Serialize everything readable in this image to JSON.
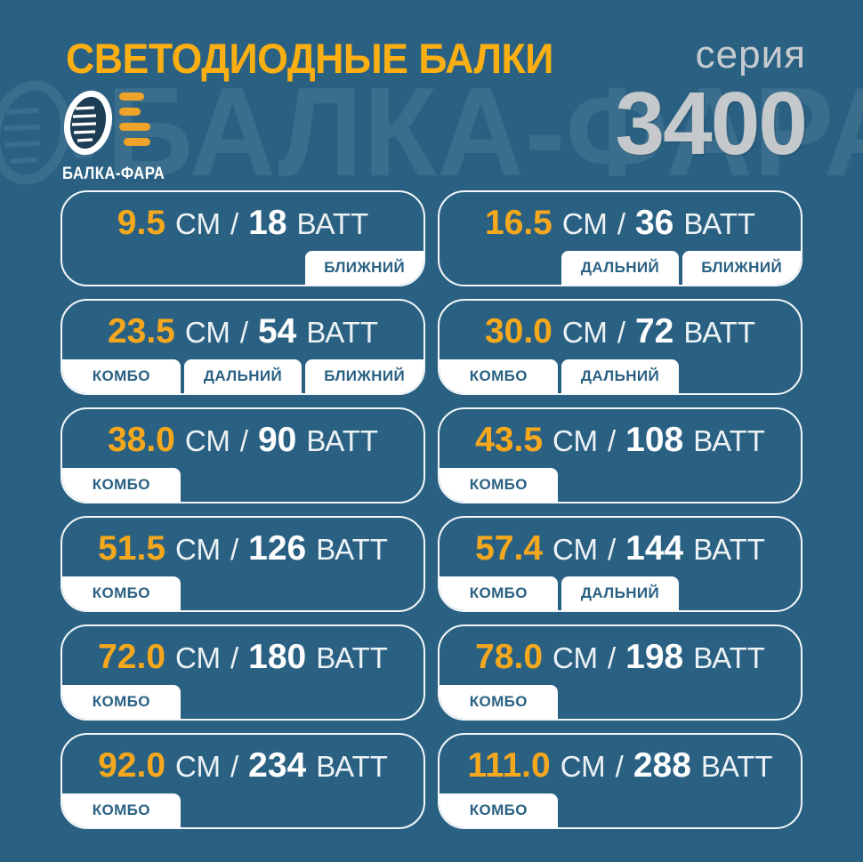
{
  "header": {
    "title": "СВЕТОДИОДНЫЕ БАЛКИ",
    "series_label": "серия",
    "series_number": "3400",
    "logo_text": "БАЛКА-ФАРА",
    "watermark_text": "БАЛКА-ФАРА"
  },
  "colors": {
    "background": "#2A6183",
    "title_yellow": "#FBAF12",
    "value_orange": "#F6A81D",
    "white": "#FFFFFF",
    "unit_text": "#EDF2F5",
    "tag_background": "#FFFFFF",
    "tag_text": "#2A6183",
    "series_gray": "#C7CBCF",
    "logo_bar_orange": "#EEA32B"
  },
  "products": [
    {
      "size": "9.5",
      "size_unit": "СМ",
      "separator": "/",
      "watts": "18",
      "watt_unit": "ВАТТ",
      "tags": [
        {
          "key": "low-beam",
          "label": "БЛИЖНИЙ",
          "col": 3
        }
      ]
    },
    {
      "size": "16.5",
      "size_unit": "СМ",
      "separator": "/",
      "watts": "36",
      "watt_unit": "ВАТТ",
      "tags": [
        {
          "key": "high-beam",
          "label": "ДАЛЬНИЙ",
          "col": 2
        },
        {
          "key": "low-beam",
          "label": "БЛИЖНИЙ",
          "col": 3
        }
      ]
    },
    {
      "size": "23.5",
      "size_unit": "СМ",
      "separator": "/",
      "watts": "54",
      "watt_unit": "ВАТТ",
      "tags": [
        {
          "key": "combo",
          "label": "КОМБО",
          "col": 1
        },
        {
          "key": "high-beam",
          "label": "ДАЛЬНИЙ",
          "col": 2
        },
        {
          "key": "low-beam",
          "label": "БЛИЖНИЙ",
          "col": 3
        }
      ]
    },
    {
      "size": "30.0",
      "size_unit": "СМ",
      "separator": "/",
      "watts": "72",
      "watt_unit": "ВАТТ",
      "tags": [
        {
          "key": "combo",
          "label": "КОМБО",
          "col": 1
        },
        {
          "key": "high-beam",
          "label": "ДАЛЬНИЙ",
          "col": 2
        }
      ]
    },
    {
      "size": "38.0",
      "size_unit": "СМ",
      "separator": "/",
      "watts": "90",
      "watt_unit": "ВАТТ",
      "tags": [
        {
          "key": "combo",
          "label": "КОМБО",
          "col": 1
        }
      ]
    },
    {
      "size": "43.5",
      "size_unit": "СМ",
      "separator": "/",
      "watts": "108",
      "watt_unit": "ВАТТ",
      "tags": [
        {
          "key": "combo",
          "label": "КОМБО",
          "col": 1
        }
      ]
    },
    {
      "size": "51.5",
      "size_unit": "СМ",
      "separator": "/",
      "watts": "126",
      "watt_unit": "ВАТТ",
      "tags": [
        {
          "key": "combo",
          "label": "КОМБО",
          "col": 1
        }
      ]
    },
    {
      "size": "57.4",
      "size_unit": "СМ",
      "separator": "/",
      "watts": "144",
      "watt_unit": "ВАТТ",
      "tags": [
        {
          "key": "combo",
          "label": "КОМБО",
          "col": 1
        },
        {
          "key": "high-beam",
          "label": "ДАЛЬНИЙ",
          "col": 2
        }
      ]
    },
    {
      "size": "72.0",
      "size_unit": "СМ",
      "separator": "/",
      "watts": "180",
      "watt_unit": "ВАТТ",
      "tags": [
        {
          "key": "combo",
          "label": "КОМБО",
          "col": 1
        }
      ]
    },
    {
      "size": "78.0",
      "size_unit": "СМ",
      "separator": "/",
      "watts": "198",
      "watt_unit": "ВАТТ",
      "tags": [
        {
          "key": "combo",
          "label": "КОМБО",
          "col": 1
        }
      ]
    },
    {
      "size": "92.0",
      "size_unit": "СМ",
      "separator": "/",
      "watts": "234",
      "watt_unit": "ВАТТ",
      "tags": [
        {
          "key": "combo",
          "label": "КОМБО",
          "col": 1
        }
      ]
    },
    {
      "size": "111.0",
      "size_unit": "СМ",
      "separator": "/",
      "watts": "288",
      "watt_unit": "ВАТТ",
      "tags": [
        {
          "key": "combo",
          "label": "КОМБО",
          "col": 1
        }
      ]
    }
  ]
}
